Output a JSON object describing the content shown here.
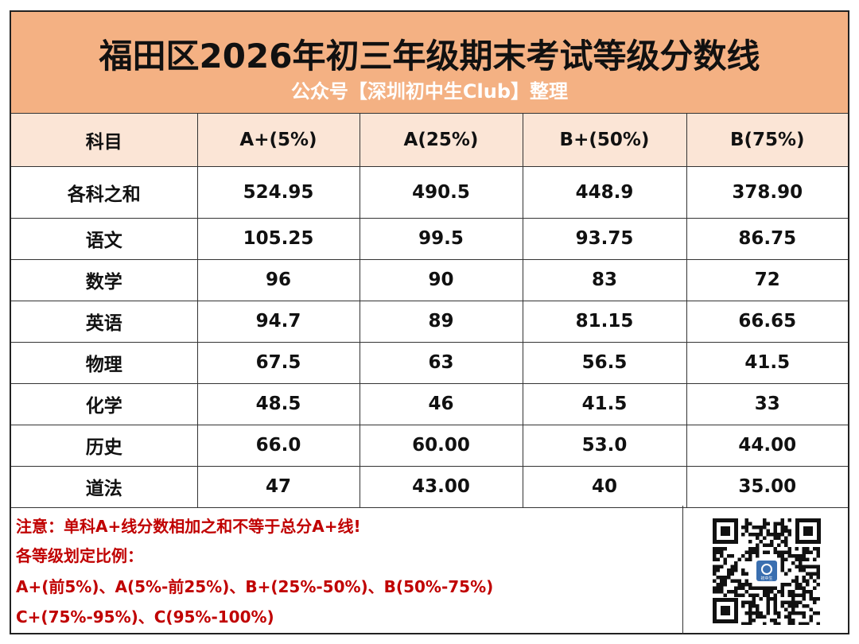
{
  "header": {
    "title": "福田区2026年初三年级期末考试等级分数线",
    "subtitle": "公众号【深圳初中生Club】整理"
  },
  "table": {
    "columns": [
      "科目",
      "A+(5%)",
      "A(25%)",
      "B+(50%)",
      "B(75%)"
    ],
    "rows": [
      {
        "subject": "各科之和",
        "values": [
          "524.95",
          "490.5",
          "448.9",
          "378.90"
        ]
      },
      {
        "subject": "语文",
        "values": [
          "105.25",
          "99.5",
          "93.75",
          "86.75"
        ]
      },
      {
        "subject": "数学",
        "values": [
          "96",
          "90",
          "83",
          "72"
        ]
      },
      {
        "subject": "英语",
        "values": [
          "94.7",
          "89",
          "81.15",
          "66.65"
        ]
      },
      {
        "subject": "物理",
        "values": [
          "67.5",
          "63",
          "56.5",
          "41.5"
        ]
      },
      {
        "subject": "化学",
        "values": [
          "48.5",
          "46",
          "41.5",
          "33"
        ]
      },
      {
        "subject": "历史",
        "values": [
          "66.0",
          "60.00",
          "53.0",
          "44.00"
        ]
      },
      {
        "subject": "道法",
        "values": [
          "47",
          "43.00",
          "40",
          "35.00"
        ]
      }
    ]
  },
  "notes": {
    "warning": "注意：单科A+线分数相加之和不等于总分A+线!",
    "ratio_heading": "各等级划定比例：",
    "ratio_line1": "A+(前5%)、A(5%-前25%)、B+(25%-50%)、B(50%-75%)",
    "ratio_line2": "C+(75%-95%)、C(95%-100%)"
  },
  "qr": {
    "logo_text": "初中生",
    "colors": {
      "dark": "#111111",
      "logo": "#3a6fb0"
    }
  },
  "colors": {
    "header_bg": "#f4b183",
    "column_header_bg": "#fbe5d6",
    "note_text": "#c00000",
    "subtitle_text": "#ffffff"
  }
}
